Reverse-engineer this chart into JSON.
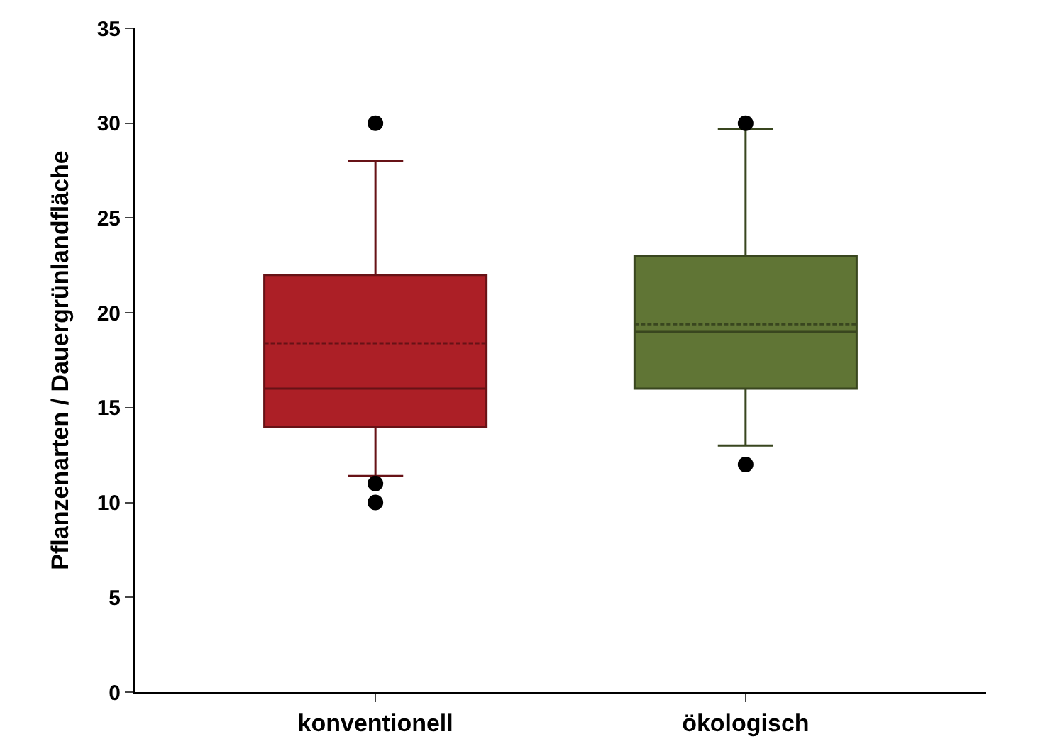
{
  "chart_data": {
    "type": "box",
    "ylabel": "Pflanzenarten / Dauergrünlandfläche",
    "categories": [
      "konventionell",
      "ökologisch"
    ],
    "ylim": [
      0,
      35
    ],
    "yticks": [
      0,
      5,
      10,
      15,
      20,
      25,
      30,
      35
    ],
    "series": [
      {
        "colors": [
          "#ac1f26",
          "#607535"
        ],
        "boxes": [
          {
            "low": 11.4,
            "q1": 14,
            "median": 16,
            "q3": 22,
            "high": 28,
            "mean": 18.4,
            "outliers": [
              30,
              11,
              10
            ]
          },
          {
            "low": 13,
            "q1": 16,
            "median": 19,
            "q3": 23,
            "high": 29.7,
            "mean": 19.4,
            "outliers": [
              30,
              12
            ]
          }
        ]
      }
    ]
  }
}
